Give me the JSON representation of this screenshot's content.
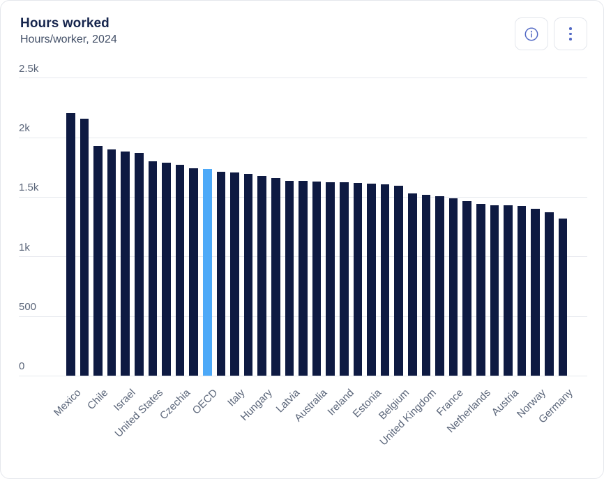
{
  "card": {
    "title": "Hours worked",
    "subtitle": "Hours/worker, 2024",
    "buttons": {
      "info_icon": "info-circle",
      "menu_icon": "kebab-vertical"
    }
  },
  "colors": {
    "bar": "#0e1a42",
    "highlight": "#4da9f8",
    "icon": "#5168c4",
    "gridline": "#e7e9ee",
    "axis_text": "#5a6579",
    "title_text": "#16254d"
  },
  "chart_data": {
    "type": "bar",
    "title": "Hours worked",
    "subtitle": "Hours/worker, 2024",
    "xlabel": "",
    "ylabel": "",
    "ylim": [
      0,
      2500
    ],
    "grid": true,
    "legend": false,
    "highlight_label": "OECD",
    "yticks": [
      {
        "label": "0",
        "value": 0
      },
      {
        "label": "500",
        "value": 500
      },
      {
        "label": "1k",
        "value": 1000
      },
      {
        "label": "1.5k",
        "value": 1500
      },
      {
        "label": "2k",
        "value": 2000
      },
      {
        "label": "2.5k",
        "value": 2500
      }
    ],
    "note": "labels shown on every other bar; unlabeled bars have empty label",
    "bars": [
      {
        "label": "Mexico",
        "value": 2207
      },
      {
        "label": "",
        "value": 2158
      },
      {
        "label": "Chile",
        "value": 1930
      },
      {
        "label": "",
        "value": 1903
      },
      {
        "label": "Israel",
        "value": 1885
      },
      {
        "label": "",
        "value": 1871
      },
      {
        "label": "United States",
        "value": 1802
      },
      {
        "label": "",
        "value": 1790
      },
      {
        "label": "Czechia",
        "value": 1773
      },
      {
        "label": "",
        "value": 1742
      },
      {
        "label": "OECD",
        "value": 1739
      },
      {
        "label": "",
        "value": 1713
      },
      {
        "label": "Italy",
        "value": 1707
      },
      {
        "label": "",
        "value": 1697
      },
      {
        "label": "Hungary",
        "value": 1678
      },
      {
        "label": "",
        "value": 1662
      },
      {
        "label": "Latvia",
        "value": 1640
      },
      {
        "label": "",
        "value": 1636
      },
      {
        "label": "Australia",
        "value": 1630
      },
      {
        "label": "",
        "value": 1627
      },
      {
        "label": "Ireland",
        "value": 1624
      },
      {
        "label": "",
        "value": 1618
      },
      {
        "label": "Estonia",
        "value": 1613
      },
      {
        "label": "",
        "value": 1606
      },
      {
        "label": "Belgium",
        "value": 1594
      },
      {
        "label": "",
        "value": 1530
      },
      {
        "label": "United Kingdom",
        "value": 1518
      },
      {
        "label": "",
        "value": 1510
      },
      {
        "label": "France",
        "value": 1490
      },
      {
        "label": "",
        "value": 1466
      },
      {
        "label": "Netherlands",
        "value": 1445
      },
      {
        "label": "",
        "value": 1432
      },
      {
        "label": "Austria",
        "value": 1430
      },
      {
        "label": "",
        "value": 1426
      },
      {
        "label": "Norway",
        "value": 1403
      },
      {
        "label": "",
        "value": 1376
      },
      {
        "label": "Germany",
        "value": 1322
      }
    ]
  }
}
